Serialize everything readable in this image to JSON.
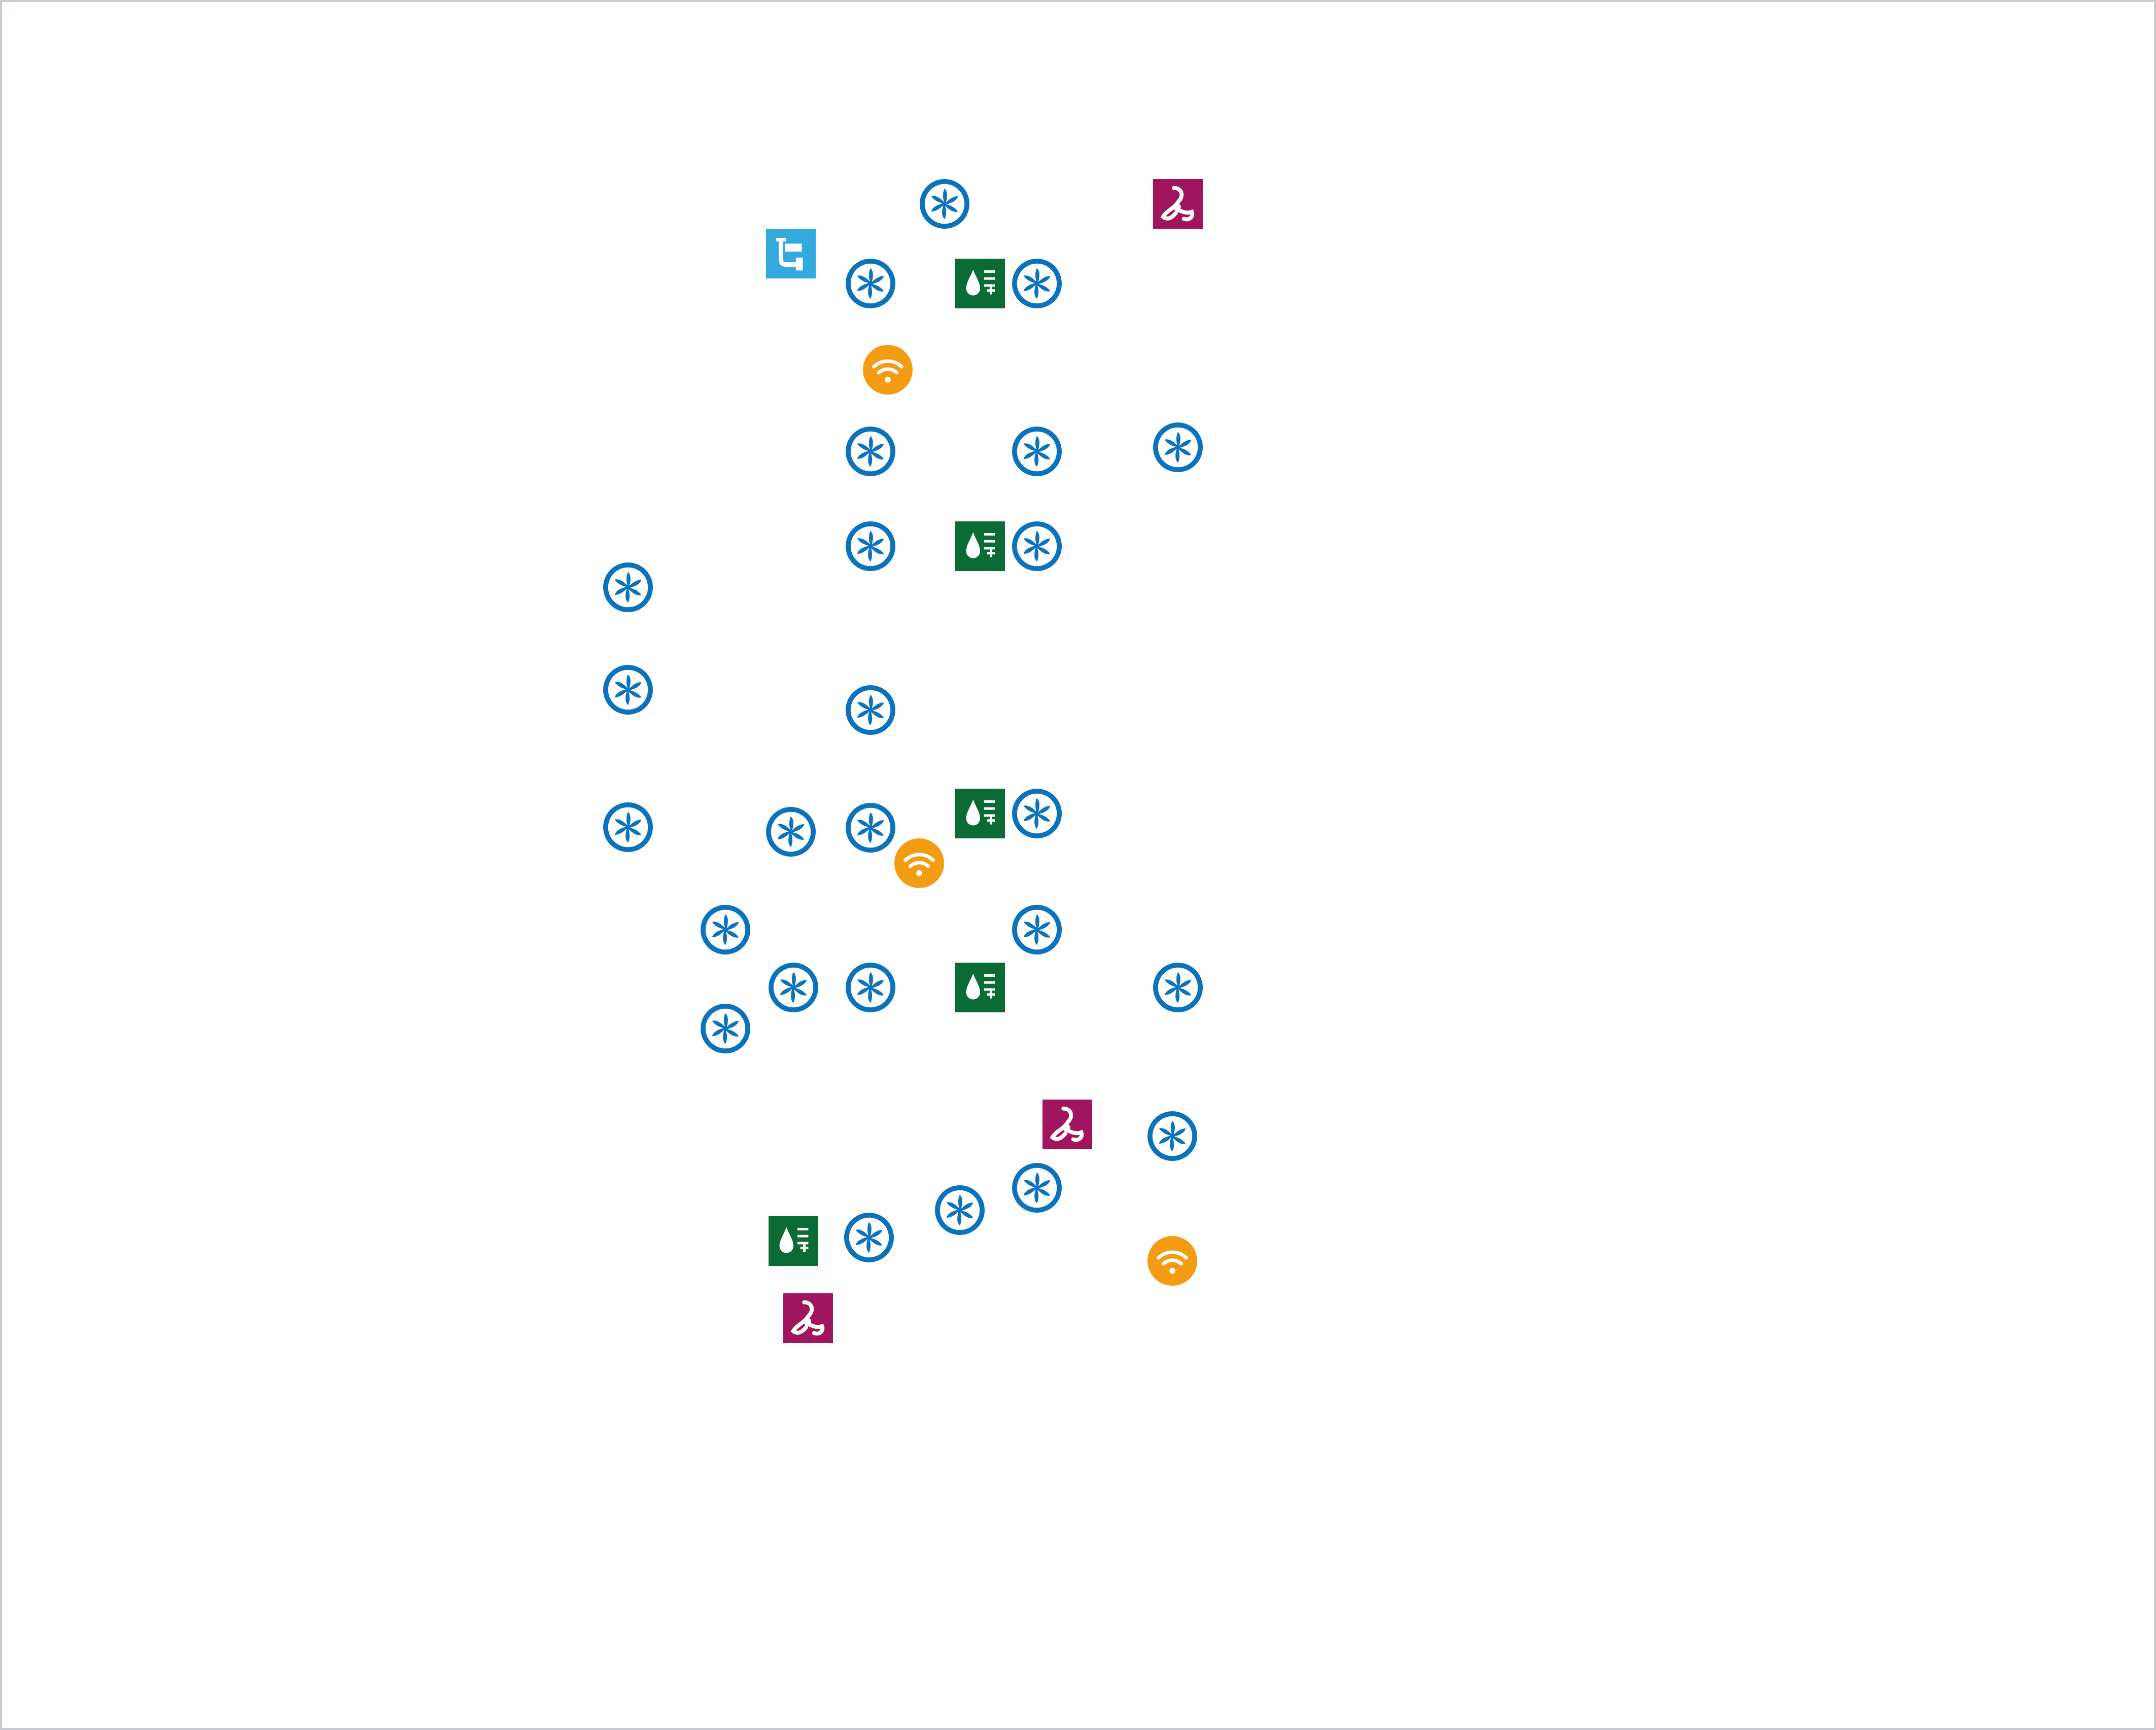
{
  "canvas": {
    "background": "#ffffff",
    "border_color": "#c8ccd2"
  },
  "marker_types": {
    "fan": {
      "icon": "fan-icon",
      "color": "#0b72be"
    },
    "wifi": {
      "icon": "wifi-icon",
      "color": "#f39c12"
    },
    "humidifier": {
      "icon": "humidifier-icon",
      "color": "#0a6b34"
    },
    "hazard": {
      "icon": "biohazard-icon",
      "color": "#a0155d"
    },
    "duct": {
      "icon": "duct-icon",
      "color": "#34a9de"
    }
  },
  "markers": [
    {
      "type": "fan"
    },
    {
      "type": "hazard"
    },
    {
      "type": "duct"
    },
    {
      "type": "fan"
    },
    {
      "type": "humidifier"
    },
    {
      "type": "fan"
    },
    {
      "type": "wifi"
    },
    {
      "type": "fan"
    },
    {
      "type": "fan"
    },
    {
      "type": "fan"
    },
    {
      "type": "fan"
    },
    {
      "type": "humidifier"
    },
    {
      "type": "fan"
    },
    {
      "type": "fan"
    },
    {
      "type": "fan"
    },
    {
      "type": "fan"
    },
    {
      "type": "humidifier"
    },
    {
      "type": "fan"
    },
    {
      "type": "fan"
    },
    {
      "type": "fan"
    },
    {
      "type": "fan"
    },
    {
      "type": "wifi"
    },
    {
      "type": "fan"
    },
    {
      "type": "fan"
    },
    {
      "type": "fan"
    },
    {
      "type": "fan"
    },
    {
      "type": "humidifier"
    },
    {
      "type": "fan"
    },
    {
      "type": "fan"
    },
    {
      "type": "hazard"
    },
    {
      "type": "fan"
    },
    {
      "type": "fan"
    },
    {
      "type": "fan"
    },
    {
      "type": "wifi"
    },
    {
      "type": "humidifier"
    },
    {
      "type": "fan"
    },
    {
      "type": "hazard"
    }
  ]
}
